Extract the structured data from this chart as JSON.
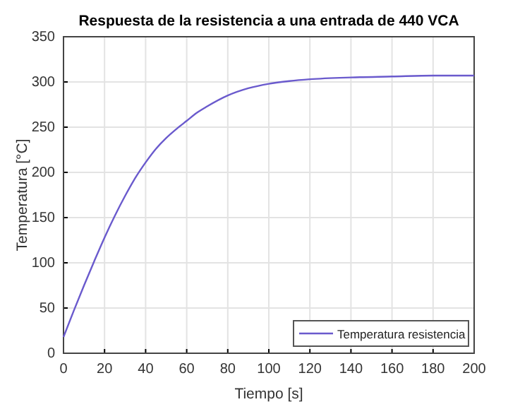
{
  "chart_data": {
    "type": "line",
    "title": "Respuesta de la resistencia a una entrada de 440 VCA",
    "xlabel": "Tiempo [s]",
    "ylabel": "Temperatura [°C]",
    "x": [
      0,
      5,
      10,
      15,
      20,
      25,
      30,
      35,
      40,
      45,
      50,
      55,
      60,
      65,
      70,
      80,
      90,
      100,
      110,
      120,
      140,
      160,
      180,
      200
    ],
    "series": [
      {
        "name": "Temperatura resistencia",
        "color": "#6a5acd",
        "values": [
          18,
          47,
          75,
          102,
          128,
          152,
          174,
          194,
          211,
          226,
          238,
          248,
          257,
          266,
          273,
          285,
          293,
          298,
          301,
          303,
          305,
          306,
          307,
          307
        ]
      }
    ],
    "xlim": [
      0,
      200
    ],
    "ylim": [
      0,
      350
    ],
    "xticks": [
      0,
      20,
      40,
      60,
      80,
      100,
      120,
      140,
      160,
      180,
      200
    ],
    "yticks": [
      0,
      50,
      100,
      150,
      200,
      250,
      300,
      350
    ],
    "grid": true,
    "legend": "bottom right"
  }
}
